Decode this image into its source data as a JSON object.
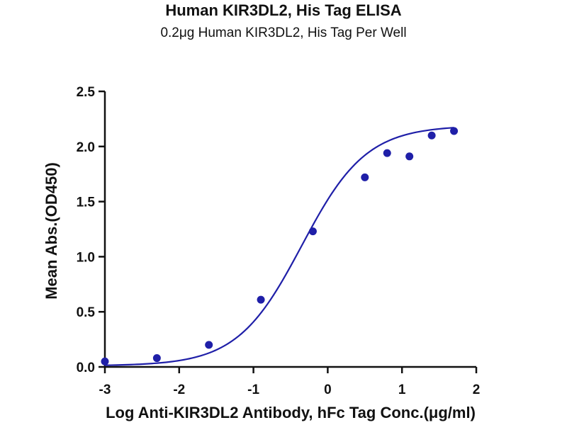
{
  "chart_data": {
    "type": "scatter",
    "title": "Human KIR3DL2, His Tag ELISA",
    "subtitle": "0.2μg Human KIR3DL2, His Tag Per Well",
    "xlabel": "Log Anti-KIR3DL2 Antibody, hFc Tag Conc.(μg/ml)",
    "ylabel": "Mean Abs.(OD450)",
    "xlim": [
      -3,
      2
    ],
    "ylim": [
      0,
      2.5
    ],
    "xticks": [
      "-3",
      "-2",
      "-1",
      "0",
      "1",
      "2"
    ],
    "yticks": [
      "0.0",
      "0.5",
      "1.0",
      "1.5",
      "2.0",
      "2.5"
    ],
    "grid": false,
    "series": [
      {
        "x": [
          -3.0,
          -2.3,
          -1.6,
          -0.9,
          -0.2,
          0.5,
          0.8,
          1.1,
          1.4,
          1.7
        ],
        "y": [
          0.05,
          0.08,
          0.2,
          0.61,
          1.23,
          1.72,
          1.94,
          1.91,
          2.1,
          2.14
        ],
        "color": "#1f1fa8"
      }
    ],
    "fit_curve": {
      "type": "4PL",
      "bottom": 0.01,
      "top": 2.19,
      "log_ec50": -0.35,
      "hill_slope": 1.0,
      "color": "#1f1fa8"
    }
  }
}
